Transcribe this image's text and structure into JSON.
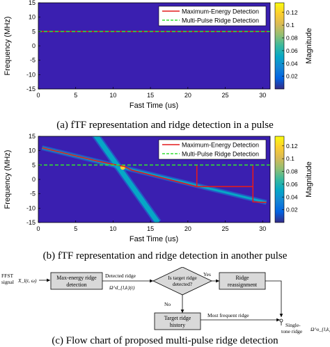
{
  "colors": {
    "max_energy": "#e41a1c",
    "multi_pulse": "#33dd33",
    "background": "#3a1fb0",
    "parula": [
      "#352a87",
      "#0363e1",
      "#1485d4",
      "#06a7c6",
      "#38b99e",
      "#92bf73",
      "#d9ba56",
      "#fcce2e",
      "#f9fb0e"
    ]
  },
  "panel_a": {
    "caption": "(a) fTF representation and ridge detection in a pulse",
    "chart_data": {
      "type": "heatmap",
      "xlabel": "Fast Time (us)",
      "ylabel": "Frequency (MHz)",
      "xlim": [
        0,
        31
      ],
      "ylim": [
        -15,
        15
      ],
      "xticks": [
        "0",
        "5",
        "10",
        "15",
        "20",
        "25",
        "30"
      ],
      "yticks": [
        "15",
        "10",
        "5",
        "0",
        "-5",
        "-10",
        "-15"
      ],
      "colorbar": {
        "label": "Magnitude",
        "ticks": [
          "0.12",
          "0.1",
          "0.08",
          "0.06",
          "0.04",
          "0.02"
        ],
        "range": [
          0,
          0.135
        ]
      },
      "legend": {
        "position": "top-right",
        "entries": [
          "Maximum-Energy Detection",
          "Multi-Pulse Ridge Detection"
        ]
      },
      "series": [
        {
          "name": "Maximum-Energy Detection",
          "style": "solid",
          "x": [
            0,
            31
          ],
          "y": [
            5,
            5
          ]
        },
        {
          "name": "Multi-Pulse Ridge Detection",
          "style": "dashed",
          "x": [
            0,
            31
          ],
          "y": [
            5,
            5
          ]
        }
      ]
    }
  },
  "panel_b": {
    "caption": "(b) fTF representation and ridge detection in another pulse",
    "chart_data": {
      "type": "heatmap",
      "xlabel": "Fast Time (us)",
      "ylabel": "Frequency (MHz)",
      "xlim": [
        0,
        31
      ],
      "ylim": [
        -15,
        15
      ],
      "xticks": [
        "0",
        "5",
        "10",
        "15",
        "20",
        "25",
        "30"
      ],
      "yticks": [
        "15",
        "10",
        "5",
        "0",
        "-5",
        "-10",
        "-15"
      ],
      "colorbar": {
        "label": "Magnitude",
        "ticks": [
          "0.12",
          "0.1",
          "0.08",
          "0.06",
          "0.04",
          "0.02"
        ],
        "range": [
          0,
          0.135
        ]
      },
      "legend": {
        "position": "top-right",
        "entries": [
          "Maximum-Energy Detection",
          "Multi-Pulse Ridge Detection"
        ]
      },
      "ridges": [
        {
          "x": [
            0.5,
            30.5
          ],
          "y": [
            11,
            -8
          ]
        },
        {
          "x": [
            7.5,
            16
          ],
          "y": [
            16,
            -15
          ]
        }
      ],
      "series": [
        {
          "name": "Maximum-Energy Detection",
          "style": "solid",
          "x": [
            0.5,
            8,
            10.5,
            11.5,
            12.5,
            21.2,
            21.2,
            21.2,
            28.7,
            28.7,
            28.7,
            30.5
          ],
          "y": [
            11,
            6.3,
            5,
            4.5,
            3.2,
            -2.5,
            5,
            -2.5,
            -2.5,
            5,
            -7.8,
            -8
          ]
        },
        {
          "name": "Multi-Pulse Ridge Detection",
          "style": "dashed",
          "x": [
            0,
            31
          ],
          "y": [
            5,
            5
          ]
        }
      ]
    }
  },
  "panel_c": {
    "caption": "(c) Flow chart of proposed multi-pulse ridge detection",
    "input_label_1": "FFST",
    "input_label_2": "signal",
    "input_symbol": "X_l(t, ω)",
    "box_max_energy_1": "Max-energy ridge",
    "box_max_energy_2": "detection",
    "detected_label": "Detected ridge",
    "detected_symbol": "Ω^d_{l,k}(t)",
    "decision_1": "Is target ridge",
    "decision_2": "detected?",
    "yes_label": "Yes",
    "no_label": "No",
    "box_reassign_1": "Ridge",
    "box_reassign_2": "reassignment",
    "box_history_1": "Target ridge",
    "box_history_2": "history",
    "most_frequent_label": "Most frequent ridge",
    "output_label_1": "Single-",
    "output_label_2": "tone ridge",
    "output_symbol": "Ω^o_{l,k}(t)"
  }
}
